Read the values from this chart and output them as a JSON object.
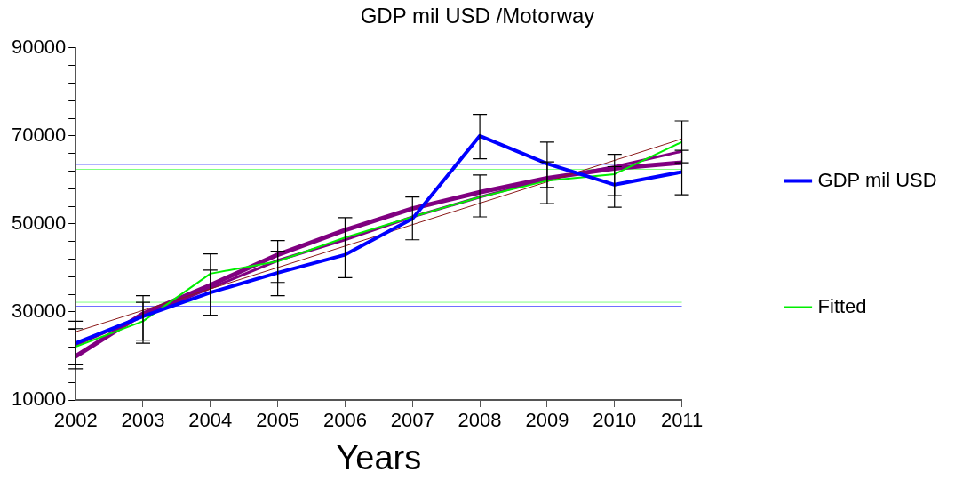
{
  "chart_data": {
    "type": "line",
    "title": "GDP mil USD /Motorway",
    "xlabel": "Years",
    "x": [
      2002,
      2003,
      2004,
      2005,
      2006,
      2007,
      2008,
      2009,
      2010,
      2011
    ],
    "xlim": [
      2002,
      2011
    ],
    "xticks": [
      2002,
      2003,
      2004,
      2005,
      2006,
      2007,
      2008,
      2009,
      2010,
      2011
    ],
    "ylim": [
      10000,
      90000
    ],
    "yticks": [
      10000,
      {
        "value": 14000,
        "label": null
      },
      {
        "value": 18000,
        "label": null
      },
      {
        "value": 22000,
        "label": null
      },
      {
        "value": 26000,
        "label": null
      },
      30000,
      {
        "value": 34000,
        "label": null
      },
      {
        "value": 38000,
        "label": null
      },
      {
        "value": 42000,
        "label": null
      },
      {
        "value": 46000,
        "label": null
      },
      50000,
      {
        "value": 54000,
        "label": null
      },
      {
        "value": 58000,
        "label": null
      },
      {
        "value": 62000,
        "label": null
      },
      {
        "value": 66000,
        "label": null
      },
      70000,
      {
        "value": 74000,
        "label": null
      },
      {
        "value": 78000,
        "label": null
      },
      {
        "value": 82000,
        "label": null
      },
      {
        "value": 86000,
        "label": null
      },
      90000
    ],
    "grid": false,
    "legend": "right",
    "marker": "none",
    "line_style": "solid",
    "series": [
      {
        "name": "GDP mil USD",
        "color": "#0000ff",
        "values": [
          22900,
          29000,
          34400,
          38900,
          43000,
          51200,
          70000,
          63700,
          58900,
          61800
        ],
        "errors": [
          [
            17100,
            27900
          ],
          [
            22900,
            33700
          ],
          [
            29200,
            43200
          ],
          [
            33700,
            46200
          ],
          [
            37800,
            51400
          ],
          [
            46400,
            56100
          ],
          [
            64800,
            74900
          ],
          [
            54600,
            68600
          ],
          [
            53800,
            65800
          ],
          [
            56600,
            73400
          ]
        ]
      },
      {
        "name": "Fitted",
        "color": "#00ee00",
        "values": [
          22100,
          27900,
          38700,
          41500,
          46900,
          51600,
          56100,
          59800,
          61300,
          68600
        ],
        "errors": [
          [
            18000,
            26200
          ],
          [
            23600,
            32200
          ],
          [
            29200,
            39500
          ],
          [
            36700,
            43800
          ],
          null,
          null,
          [
            51600,
            61100
          ],
          [
            58300,
            64100
          ],
          [
            56400,
            63000
          ],
          [
            63900,
            66700
          ]
        ]
      },
      {
        "type": "line",
        "color": "#8b1a1a",
        "x": [
          2002,
          2011
        ],
        "values": [
          25500,
          69300
        ]
      },
      {
        "type": "line",
        "color": "#800080",
        "values": [
          22500,
          29000,
          35400,
          41700,
          46400,
          51600,
          56100,
          60200,
          63000,
          66500
        ]
      },
      {
        "type": "line",
        "color": "#800080",
        "values": [
          19900,
          29600,
          36100,
          43000,
          48600,
          53500,
          57200,
          60400,
          62600,
          63900
        ]
      }
    ],
    "ref_lines": [
      {
        "axis": "y",
        "value": 63500,
        "color": "#7070ff"
      },
      {
        "axis": "y",
        "value": 62400,
        "color": "#80ff80"
      },
      {
        "axis": "y",
        "value": 32200,
        "color": "#80ff80"
      },
      {
        "axis": "y",
        "value": 31300,
        "color": "#7070ff"
      }
    ]
  }
}
